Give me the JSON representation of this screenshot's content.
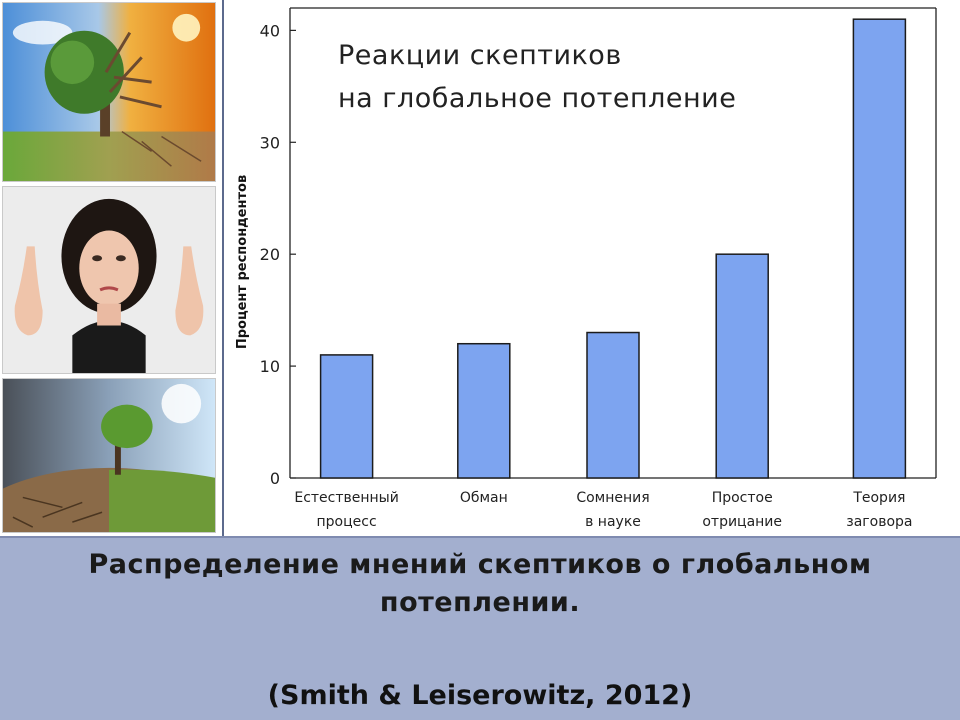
{
  "chart_data": {
    "type": "bar",
    "title_lines": [
      "Реакции  скептиков",
      "на  глобальное  потепление"
    ],
    "ylabel": "Процент респондентов",
    "xlabel": "",
    "ylim": [
      0,
      42
    ],
    "yticks": [
      0,
      10,
      20,
      30,
      40
    ],
    "grid": false,
    "categories": [
      {
        "lines": [
          "Естественный",
          "процесс"
        ]
      },
      {
        "lines": [
          "Обман"
        ]
      },
      {
        "lines": [
          "Сомнения",
          "в науке"
        ]
      },
      {
        "lines": [
          "Простое",
          "отрицание"
        ]
      },
      {
        "lines": [
          "Теория",
          "заговора"
        ]
      }
    ],
    "values": [
      11,
      12,
      13,
      20,
      41
    ],
    "bar_color": "#7da4f0",
    "bar_edge_color": "#1c1c1c"
  },
  "caption": {
    "title": "Распределение мнений скептиков о глобальном потеплении.",
    "source": "(Smith & Leiserowitz, 2012)"
  },
  "colors": {
    "caption_background": "#a3afcf",
    "frame_border": "#5c6a8d"
  },
  "images": [
    {
      "name": "climate-tree-image",
      "description": "half-green, half-dry tree"
    },
    {
      "name": "skeptical-woman-image",
      "description": "woman making air quotes"
    },
    {
      "name": "dry-earth-tree-image",
      "description": "tree on cracked earth"
    }
  ]
}
